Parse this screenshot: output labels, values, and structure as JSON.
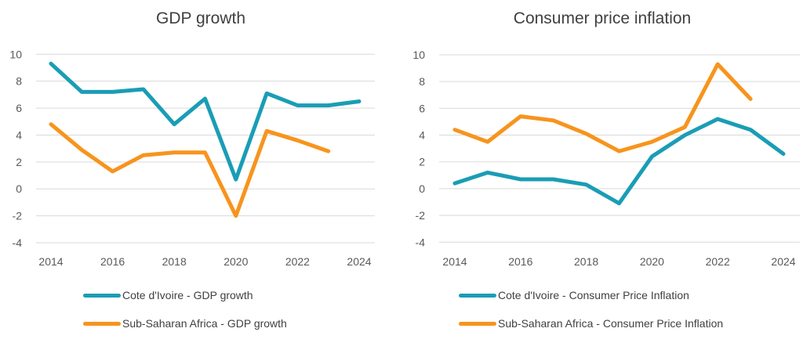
{
  "chart_data": [
    {
      "type": "line",
      "title": "GDP growth",
      "xlabel": "",
      "ylabel": "",
      "x": [
        2014,
        2015,
        2016,
        2017,
        2018,
        2019,
        2020,
        2021,
        2022,
        2023,
        2024
      ],
      "x_tick_labels": [
        "2014",
        "2016",
        "2018",
        "2020",
        "2022",
        "2024"
      ],
      "y_tick_labels": [
        "10",
        "8",
        "6",
        "4",
        "2",
        "0",
        "-2",
        "-4"
      ],
      "ylim": [
        -4,
        10
      ],
      "grid": true,
      "legend_position": "bottom",
      "series": [
        {
          "name": "Cote d'Ivoire - GDP growth",
          "color": "#1A9DB5",
          "values": [
            9.3,
            7.2,
            7.2,
            7.4,
            4.8,
            6.7,
            0.7,
            7.1,
            6.2,
            6.2,
            6.5
          ]
        },
        {
          "name": "Sub-Saharan Africa - GDP growth",
          "color": "#F7941D",
          "values": [
            4.8,
            2.9,
            1.3,
            2.5,
            2.7,
            2.7,
            -2.0,
            4.3,
            3.6,
            2.8,
            null
          ]
        }
      ]
    },
    {
      "type": "line",
      "title": "Consumer price inflation",
      "xlabel": "",
      "ylabel": "",
      "x": [
        2014,
        2015,
        2016,
        2017,
        2018,
        2019,
        2020,
        2021,
        2022,
        2023,
        2024
      ],
      "x_tick_labels": [
        "2014",
        "2016",
        "2018",
        "2020",
        "2022",
        "2024"
      ],
      "y_tick_labels": [
        "10",
        "8",
        "6",
        "4",
        "2",
        "0",
        "-2",
        "-4"
      ],
      "ylim": [
        -4,
        10
      ],
      "grid": true,
      "legend_position": "bottom",
      "series": [
        {
          "name": "Cote d'Ivoire - Consumer Price Inflation",
          "color": "#1A9DB5",
          "values": [
            0.4,
            1.2,
            0.7,
            0.7,
            0.3,
            -1.1,
            2.4,
            4.0,
            5.2,
            4.4,
            2.6
          ]
        },
        {
          "name": "Sub-Saharan Africa - Consumer Price Inflation",
          "color": "#F7941D",
          "values": [
            4.4,
            3.5,
            5.4,
            5.1,
            4.1,
            2.8,
            3.5,
            4.6,
            9.3,
            6.7,
            null
          ]
        }
      ]
    }
  ]
}
